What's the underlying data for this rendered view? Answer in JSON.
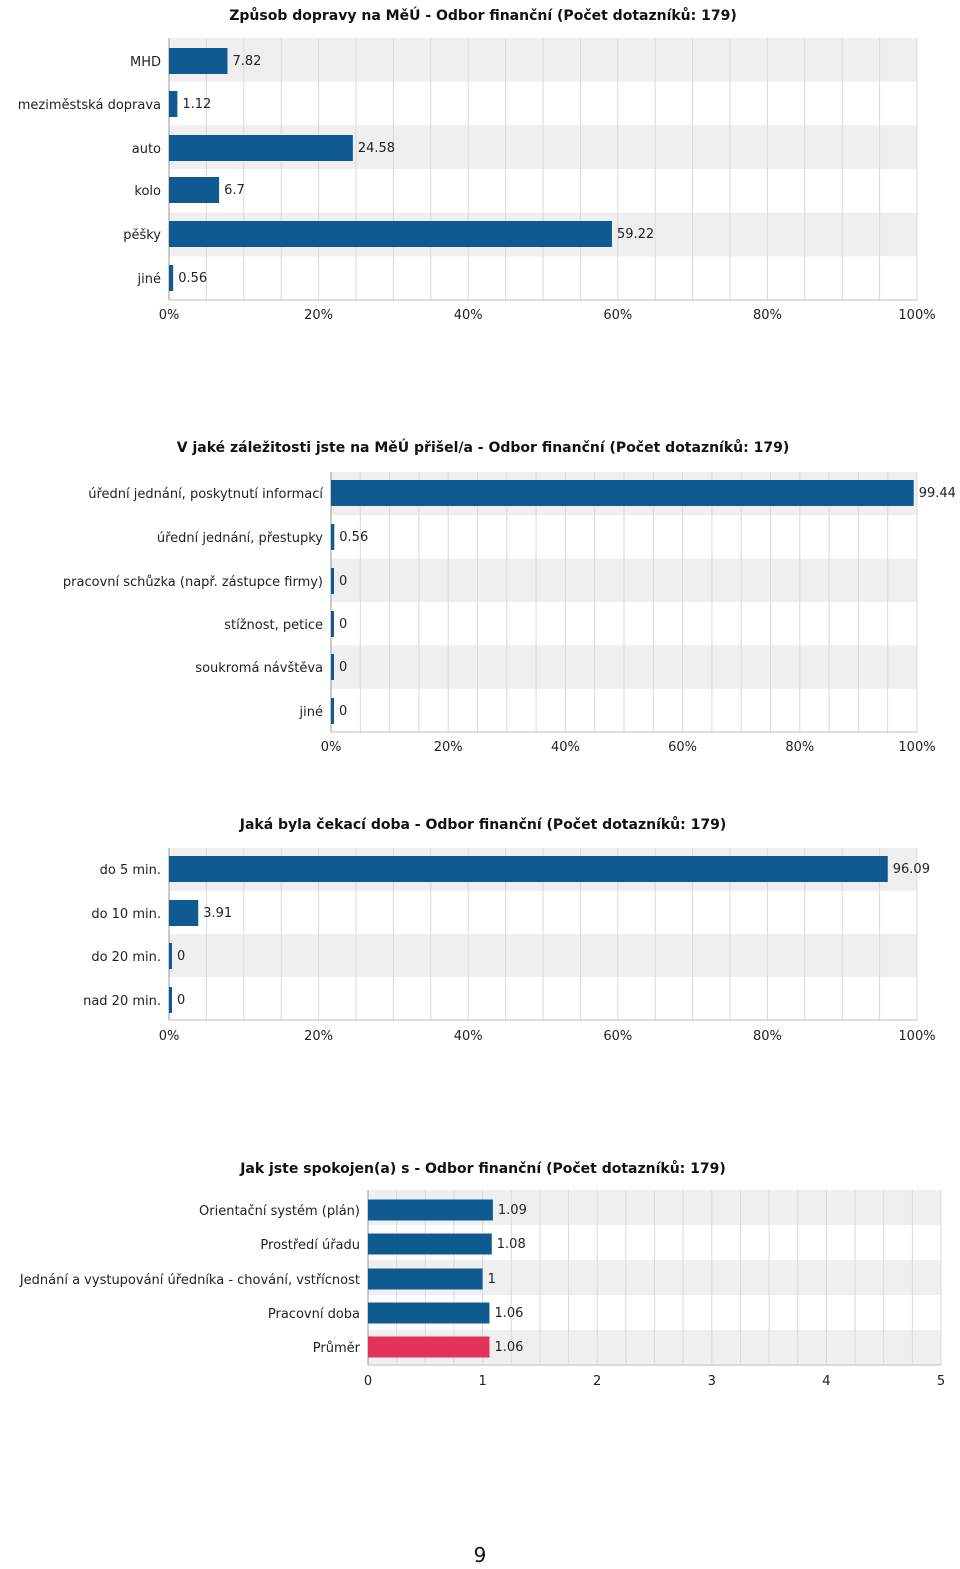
{
  "page_number": "9",
  "colors": {
    "bar": "#0f5b91",
    "highlight": "#e2325c",
    "grid": "#d9d9d9",
    "stripe": "#efefef"
  },
  "chart_data": [
    {
      "type": "bar",
      "orientation": "horizontal",
      "title": "Způsob dopravy na MěÚ - Odbor finanční (Počet dotazníků: 179)",
      "categories": [
        "MHD",
        "meziměstská doprava",
        "auto",
        "kolo",
        "pěšky",
        "jiné"
      ],
      "values": [
        7.82,
        1.12,
        24.58,
        6.7,
        59.22,
        0.56
      ],
      "data_labels": [
        "7.82",
        "1.12",
        "24.58",
        "6.7",
        "59.22",
        "0.56"
      ],
      "xlim": [
        0,
        100
      ],
      "ticks": [
        "0%",
        "20%",
        "40%",
        "60%",
        "80%",
        "100%"
      ],
      "grid": true
    },
    {
      "type": "bar",
      "orientation": "horizontal",
      "title": "V jaké záležitosti jste na MěÚ přišel/a - Odbor finanční (Počet dotazníků: 179)",
      "categories": [
        "úřední jednání, poskytnutí informací",
        "úřední jednání, přestupky",
        "pracovní schůzka (např. zástupce firmy)",
        "stížnost, petice",
        "soukromá návštěva",
        "jiné"
      ],
      "values": [
        99.44,
        0.56,
        0,
        0,
        0,
        0
      ],
      "data_labels": [
        "99.44",
        "0.56",
        "0",
        "0",
        "0",
        "0"
      ],
      "xlim": [
        0,
        100
      ],
      "ticks": [
        "0%",
        "20%",
        "40%",
        "60%",
        "80%",
        "100%"
      ],
      "grid": true
    },
    {
      "type": "bar",
      "orientation": "horizontal",
      "title": "Jaká byla čekací doba - Odbor finanční (Počet dotazníků: 179)",
      "categories": [
        "do 5 min.",
        "do 10 min.",
        "do 20 min.",
        "nad 20 min."
      ],
      "values": [
        96.09,
        3.91,
        0,
        0
      ],
      "data_labels": [
        "96.09",
        "3.91",
        "0",
        "0"
      ],
      "xlim": [
        0,
        100
      ],
      "ticks": [
        "0%",
        "20%",
        "40%",
        "60%",
        "80%",
        "100%"
      ],
      "grid": true
    },
    {
      "type": "bar",
      "orientation": "horizontal",
      "title": "Jak jste spokojen(a) s - Odbor finanční (Počet dotazníků: 179)",
      "categories": [
        "Orientační systém (plán)",
        "Prostředí úřadu",
        "Jednání a vystupování úředníka - chování, vstřícnost",
        "Pracovní doba",
        "Průměr"
      ],
      "values": [
        1.09,
        1.08,
        1,
        1.06,
        1.06
      ],
      "data_labels": [
        "1.09",
        "1.08",
        "1",
        "1.06",
        "1.06"
      ],
      "highlight_index": 4,
      "xlim": [
        0,
        5
      ],
      "ticks": [
        "0",
        "1",
        "2",
        "3",
        "4",
        "5"
      ],
      "grid": true
    }
  ]
}
